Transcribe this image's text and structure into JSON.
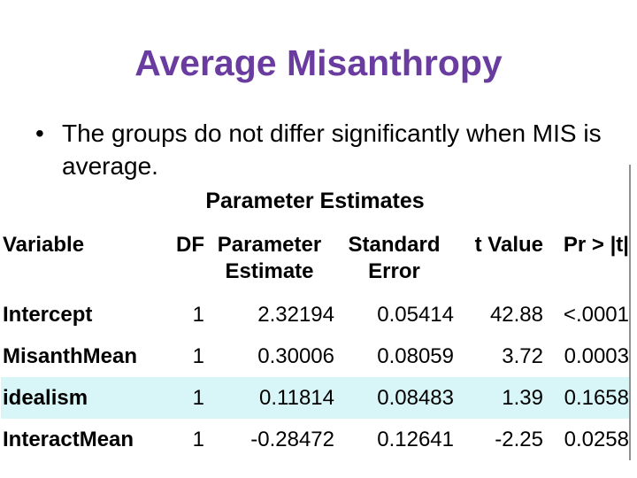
{
  "slide": {
    "title": "Average Misanthropy",
    "bullet_marker": "•",
    "bullet": "The groups do not differ significantly when MIS is average.",
    "colors": {
      "title_purple": "#6A3CA0",
      "row_highlight_cyan": "#D8F6F8",
      "divider_gray": "#909090",
      "text": "#000000",
      "background": "#FFFFFF"
    }
  },
  "table": {
    "title": "Parameter Estimates",
    "columns": [
      "Variable",
      "DF",
      "Parameter\nEstimate",
      "Standard\nError",
      "t Value",
      "Pr > |t|"
    ],
    "rows": [
      {
        "variable": "Intercept",
        "df": "1",
        "estimate": "2.32194",
        "std_error": "0.05414",
        "t_value": "42.88",
        "pr_t": "<.0001",
        "highlighted": false
      },
      {
        "variable": "MisanthMean",
        "df": "1",
        "estimate": "0.30006",
        "std_error": "0.08059",
        "t_value": "3.72",
        "pr_t": "0.0003",
        "highlighted": false
      },
      {
        "variable": "idealism",
        "df": "1",
        "estimate": "0.11814",
        "std_error": "0.08483",
        "t_value": "1.39",
        "pr_t": "0.1658",
        "highlighted": true
      },
      {
        "variable": "InteractMean",
        "df": "1",
        "estimate": "-0.28472",
        "std_error": "0.12641",
        "t_value": "-2.25",
        "pr_t": "0.0258",
        "highlighted": false
      }
    ]
  }
}
